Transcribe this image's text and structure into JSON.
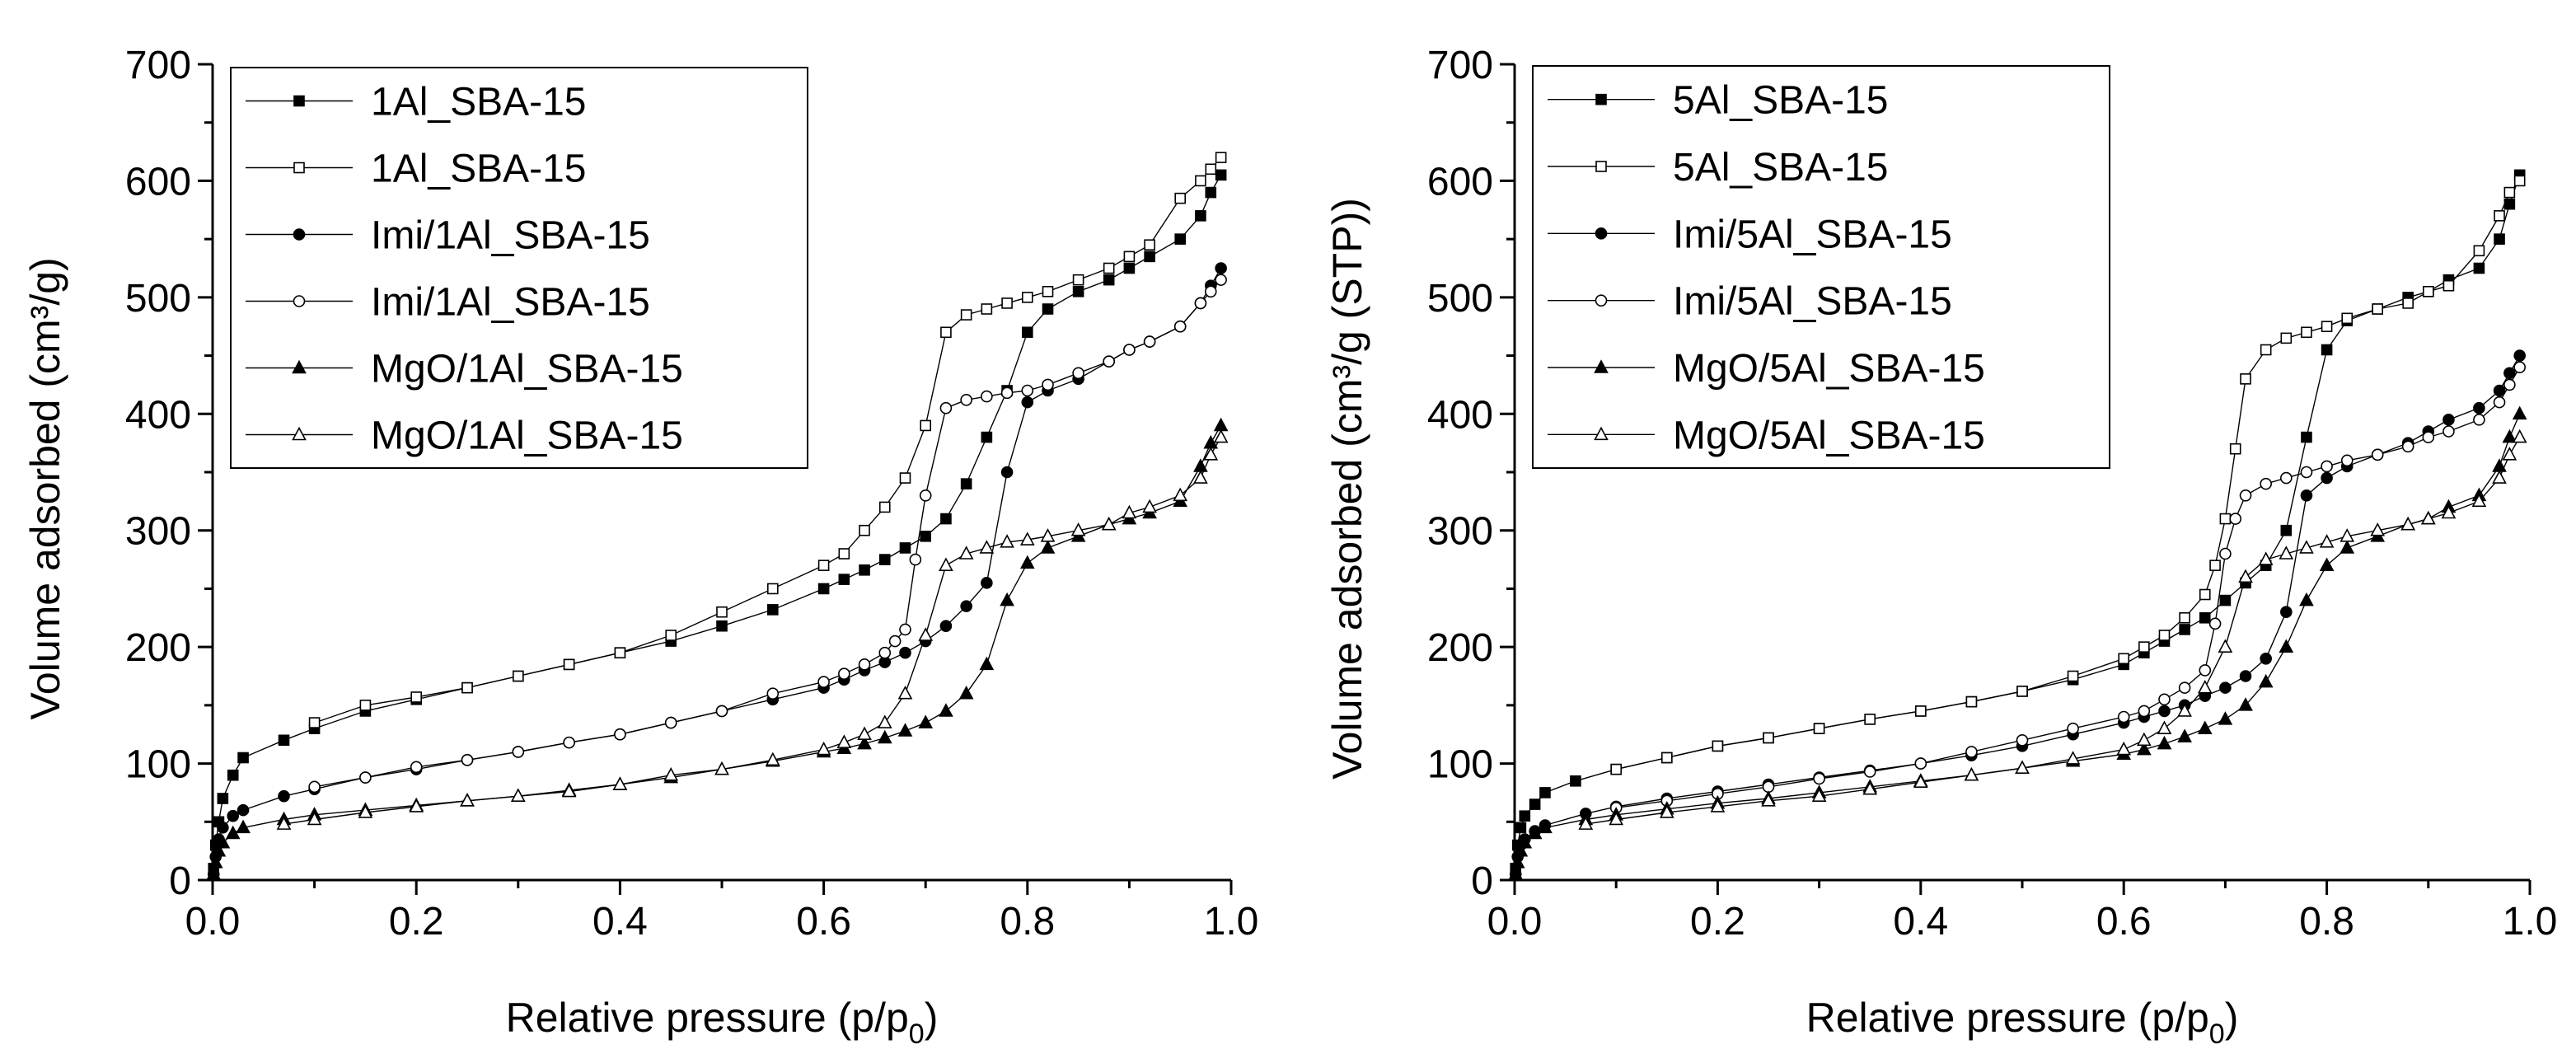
{
  "chart_data": [
    {
      "type": "line",
      "id": "left",
      "xlabel_prefix": "Relative pressure (p/p",
      "xlabel_sub": "0",
      "xlabel_suffix": ")",
      "ylabel": "Volume adsorbed (cm³/g)",
      "xlim": [
        0,
        1.0
      ],
      "ylim": [
        0,
        700
      ],
      "xticks": [
        0.0,
        0.2,
        0.4,
        0.6,
        0.8,
        1.0
      ],
      "xtick_labels": [
        "0.0",
        "0.2",
        "0.4",
        "0.6",
        "0.8",
        "1.0"
      ],
      "yticks": [
        0,
        100,
        200,
        300,
        400,
        500,
        600,
        700
      ],
      "ytick_labels": [
        "0",
        "100",
        "200",
        "300",
        "400",
        "500",
        "600",
        "700"
      ],
      "legend_position": "top-left",
      "series": [
        {
          "name": "1Al_SBA-15",
          "marker": "square-filled",
          "x": [
            0.001,
            0.003,
            0.006,
            0.01,
            0.02,
            0.03,
            0.07,
            0.1,
            0.15,
            0.2,
            0.25,
            0.3,
            0.35,
            0.4,
            0.45,
            0.5,
            0.55,
            0.6,
            0.62,
            0.64,
            0.66,
            0.68,
            0.7,
            0.72,
            0.74,
            0.76,
            0.78,
            0.8,
            0.82,
            0.85,
            0.88,
            0.9,
            0.92,
            0.95,
            0.97,
            0.98,
            0.99
          ],
          "y": [
            10,
            30,
            50,
            70,
            90,
            105,
            120,
            130,
            145,
            155,
            165,
            175,
            185,
            195,
            205,
            218,
            232,
            250,
            258,
            266,
            275,
            285,
            295,
            310,
            340,
            380,
            420,
            470,
            490,
            505,
            515,
            525,
            535,
            550,
            570,
            590,
            605
          ]
        },
        {
          "name": "1Al_SBA-15",
          "marker": "square-open",
          "x": [
            0.99,
            0.98,
            0.97,
            0.95,
            0.92,
            0.9,
            0.88,
            0.85,
            0.82,
            0.8,
            0.78,
            0.76,
            0.74,
            0.72,
            0.7,
            0.68,
            0.66,
            0.64,
            0.62,
            0.6,
            0.55,
            0.5,
            0.45,
            0.4,
            0.35,
            0.3,
            0.25,
            0.2,
            0.15,
            0.1
          ],
          "y": [
            620,
            610,
            600,
            585,
            545,
            535,
            525,
            515,
            505,
            500,
            495,
            490,
            485,
            470,
            390,
            345,
            320,
            300,
            280,
            270,
            250,
            230,
            210,
            195,
            185,
            175,
            165,
            157,
            150,
            135
          ]
        },
        {
          "name": "Imi/1Al_SBA-15",
          "marker": "circle-filled",
          "x": [
            0.001,
            0.003,
            0.006,
            0.01,
            0.02,
            0.03,
            0.07,
            0.1,
            0.15,
            0.2,
            0.25,
            0.3,
            0.35,
            0.4,
            0.45,
            0.5,
            0.55,
            0.6,
            0.62,
            0.64,
            0.66,
            0.68,
            0.7,
            0.72,
            0.74,
            0.76,
            0.78,
            0.8,
            0.82,
            0.85,
            0.88,
            0.9,
            0.92,
            0.95,
            0.97,
            0.98,
            0.99
          ],
          "y": [
            5,
            20,
            35,
            45,
            55,
            60,
            72,
            78,
            88,
            95,
            103,
            110,
            118,
            125,
            135,
            145,
            155,
            165,
            172,
            180,
            187,
            195,
            205,
            218,
            235,
            255,
            350,
            410,
            420,
            430,
            445,
            455,
            462,
            475,
            495,
            510,
            525
          ]
        },
        {
          "name": "Imi/1Al_SBA-15",
          "marker": "circle-open",
          "x": [
            0.99,
            0.98,
            0.97,
            0.95,
            0.92,
            0.9,
            0.88,
            0.85,
            0.82,
            0.8,
            0.78,
            0.76,
            0.74,
            0.72,
            0.7,
            0.69,
            0.68,
            0.67,
            0.66,
            0.64,
            0.62,
            0.6,
            0.55,
            0.5,
            0.45,
            0.4,
            0.35,
            0.3,
            0.25,
            0.2,
            0.15,
            0.1
          ],
          "y": [
            515,
            505,
            495,
            475,
            462,
            455,
            445,
            435,
            425,
            420,
            418,
            415,
            412,
            405,
            330,
            275,
            215,
            205,
            195,
            185,
            177,
            170,
            160,
            145,
            135,
            125,
            118,
            110,
            103,
            97,
            88,
            80
          ]
        },
        {
          "name": "MgO/1Al_SBA-15",
          "marker": "triangle-filled",
          "x": [
            0.001,
            0.003,
            0.006,
            0.01,
            0.02,
            0.03,
            0.07,
            0.1,
            0.15,
            0.2,
            0.25,
            0.3,
            0.35,
            0.4,
            0.45,
            0.5,
            0.55,
            0.6,
            0.62,
            0.64,
            0.66,
            0.68,
            0.7,
            0.72,
            0.74,
            0.76,
            0.78,
            0.8,
            0.82,
            0.85,
            0.88,
            0.9,
            0.92,
            0.95,
            0.97,
            0.98,
            0.99
          ],
          "y": [
            5,
            15,
            25,
            32,
            40,
            45,
            52,
            56,
            60,
            64,
            68,
            72,
            77,
            82,
            88,
            95,
            102,
            110,
            113,
            117,
            122,
            128,
            135,
            145,
            160,
            185,
            240,
            272,
            285,
            295,
            305,
            310,
            315,
            325,
            355,
            375,
            390
          ]
        },
        {
          "name": "MgO/1Al_SBA-15",
          "marker": "triangle-open",
          "x": [
            0.99,
            0.98,
            0.97,
            0.95,
            0.92,
            0.9,
            0.88,
            0.85,
            0.82,
            0.8,
            0.78,
            0.76,
            0.74,
            0.72,
            0.7,
            0.68,
            0.66,
            0.64,
            0.62,
            0.6,
            0.55,
            0.5,
            0.45,
            0.4,
            0.35,
            0.3,
            0.25,
            0.2,
            0.15,
            0.1,
            0.07
          ],
          "y": [
            380,
            365,
            345,
            330,
            320,
            315,
            305,
            300,
            295,
            292,
            290,
            285,
            280,
            270,
            210,
            160,
            135,
            125,
            118,
            112,
            103,
            95,
            90,
            82,
            76,
            72,
            68,
            63,
            58,
            52,
            48
          ]
        }
      ]
    },
    {
      "type": "line",
      "id": "right",
      "xlabel_prefix": "Relative pressure (p/p",
      "xlabel_sub": "0",
      "xlabel_suffix": ")",
      "ylabel": "Volume adsorbed (cm³/g (STP))",
      "xlim": [
        0,
        1.0
      ],
      "ylim": [
        0,
        700
      ],
      "xticks": [
        0.0,
        0.2,
        0.4,
        0.6,
        0.8,
        1.0
      ],
      "xtick_labels": [
        "0.0",
        "0.2",
        "0.4",
        "0.6",
        "0.8",
        "1.0"
      ],
      "yticks": [
        0,
        100,
        200,
        300,
        400,
        500,
        600,
        700
      ],
      "ytick_labels": [
        "0",
        "100",
        "200",
        "300",
        "400",
        "500",
        "600",
        "700"
      ],
      "legend_position": "top-left",
      "series": [
        {
          "name": "5Al_SBA-15",
          "marker": "square-filled",
          "x": [
            0.001,
            0.003,
            0.006,
            0.01,
            0.02,
            0.03,
            0.06,
            0.1,
            0.15,
            0.2,
            0.25,
            0.3,
            0.35,
            0.4,
            0.45,
            0.5,
            0.55,
            0.6,
            0.62,
            0.64,
            0.66,
            0.68,
            0.7,
            0.72,
            0.74,
            0.76,
            0.78,
            0.8,
            0.82,
            0.85,
            0.88,
            0.9,
            0.92,
            0.95,
            0.97,
            0.98,
            0.99
          ],
          "y": [
            10,
            30,
            45,
            55,
            65,
            75,
            85,
            95,
            105,
            115,
            122,
            130,
            138,
            145,
            153,
            162,
            172,
            185,
            195,
            205,
            215,
            225,
            240,
            255,
            270,
            300,
            380,
            455,
            480,
            490,
            500,
            505,
            515,
            525,
            550,
            580,
            605
          ]
        },
        {
          "name": "5Al_SBA-15",
          "marker": "square-open",
          "x": [
            0.99,
            0.98,
            0.97,
            0.95,
            0.92,
            0.9,
            0.88,
            0.85,
            0.82,
            0.8,
            0.78,
            0.76,
            0.74,
            0.72,
            0.71,
            0.7,
            0.69,
            0.68,
            0.66,
            0.64,
            0.62,
            0.6,
            0.55,
            0.5,
            0.45,
            0.4,
            0.35,
            0.3,
            0.25,
            0.2,
            0.15,
            0.1
          ],
          "y": [
            600,
            590,
            570,
            540,
            510,
            505,
            495,
            490,
            482,
            475,
            470,
            465,
            455,
            430,
            370,
            310,
            270,
            245,
            225,
            210,
            200,
            190,
            175,
            162,
            153,
            145,
            138,
            130,
            122,
            115,
            105,
            95
          ]
        },
        {
          "name": "Imi/5Al_SBA-15",
          "marker": "circle-filled",
          "x": [
            0.001,
            0.003,
            0.006,
            0.01,
            0.02,
            0.03,
            0.07,
            0.1,
            0.15,
            0.2,
            0.25,
            0.3,
            0.35,
            0.4,
            0.45,
            0.5,
            0.55,
            0.6,
            0.62,
            0.64,
            0.66,
            0.68,
            0.7,
            0.72,
            0.74,
            0.76,
            0.78,
            0.8,
            0.82,
            0.85,
            0.88,
            0.9,
            0.92,
            0.95,
            0.97,
            0.98,
            0.99
          ],
          "y": [
            5,
            20,
            30,
            35,
            42,
            47,
            57,
            63,
            70,
            76,
            82,
            88,
            94,
            100,
            107,
            115,
            125,
            135,
            140,
            145,
            150,
            158,
            165,
            175,
            190,
            230,
            330,
            345,
            355,
            365,
            375,
            385,
            395,
            405,
            420,
            435,
            450
          ]
        },
        {
          "name": "Imi/5Al_SBA-15",
          "marker": "circle-open",
          "x": [
            0.99,
            0.98,
            0.97,
            0.95,
            0.92,
            0.9,
            0.88,
            0.85,
            0.82,
            0.8,
            0.78,
            0.76,
            0.74,
            0.72,
            0.71,
            0.7,
            0.69,
            0.68,
            0.66,
            0.64,
            0.62,
            0.6,
            0.55,
            0.5,
            0.45,
            0.4,
            0.35,
            0.3,
            0.25,
            0.2,
            0.15,
            0.1
          ],
          "y": [
            440,
            425,
            410,
            395,
            385,
            380,
            372,
            365,
            360,
            355,
            350,
            345,
            340,
            330,
            310,
            280,
            220,
            180,
            165,
            155,
            145,
            140,
            130,
            120,
            110,
            100,
            93,
            87,
            80,
            74,
            68,
            62
          ]
        },
        {
          "name": "MgO/5Al_SBA-15",
          "marker": "triangle-filled",
          "x": [
            0.001,
            0.003,
            0.006,
            0.01,
            0.02,
            0.03,
            0.07,
            0.1,
            0.15,
            0.2,
            0.25,
            0.3,
            0.35,
            0.4,
            0.45,
            0.5,
            0.55,
            0.6,
            0.62,
            0.64,
            0.66,
            0.68,
            0.7,
            0.72,
            0.74,
            0.76,
            0.78,
            0.8,
            0.82,
            0.85,
            0.88,
            0.9,
            0.92,
            0.95,
            0.97,
            0.98,
            0.99
          ],
          "y": [
            5,
            15,
            25,
            32,
            40,
            45,
            52,
            56,
            61,
            66,
            70,
            75,
            80,
            85,
            90,
            96,
            102,
            108,
            112,
            117,
            123,
            130,
            138,
            150,
            170,
            200,
            240,
            270,
            285,
            295,
            305,
            310,
            320,
            330,
            355,
            380,
            400
          ]
        },
        {
          "name": "MgO/5Al_SBA-15",
          "marker": "triangle-open",
          "x": [
            0.99,
            0.98,
            0.97,
            0.95,
            0.92,
            0.9,
            0.88,
            0.85,
            0.82,
            0.8,
            0.78,
            0.76,
            0.74,
            0.72,
            0.7,
            0.68,
            0.66,
            0.64,
            0.62,
            0.6,
            0.55,
            0.5,
            0.45,
            0.4,
            0.35,
            0.3,
            0.25,
            0.2,
            0.15,
            0.1,
            0.07
          ],
          "y": [
            380,
            365,
            345,
            325,
            315,
            310,
            305,
            300,
            295,
            290,
            285,
            280,
            275,
            260,
            200,
            165,
            145,
            130,
            120,
            112,
            104,
            96,
            90,
            84,
            78,
            72,
            68,
            63,
            58,
            52,
            48
          ]
        }
      ]
    }
  ]
}
